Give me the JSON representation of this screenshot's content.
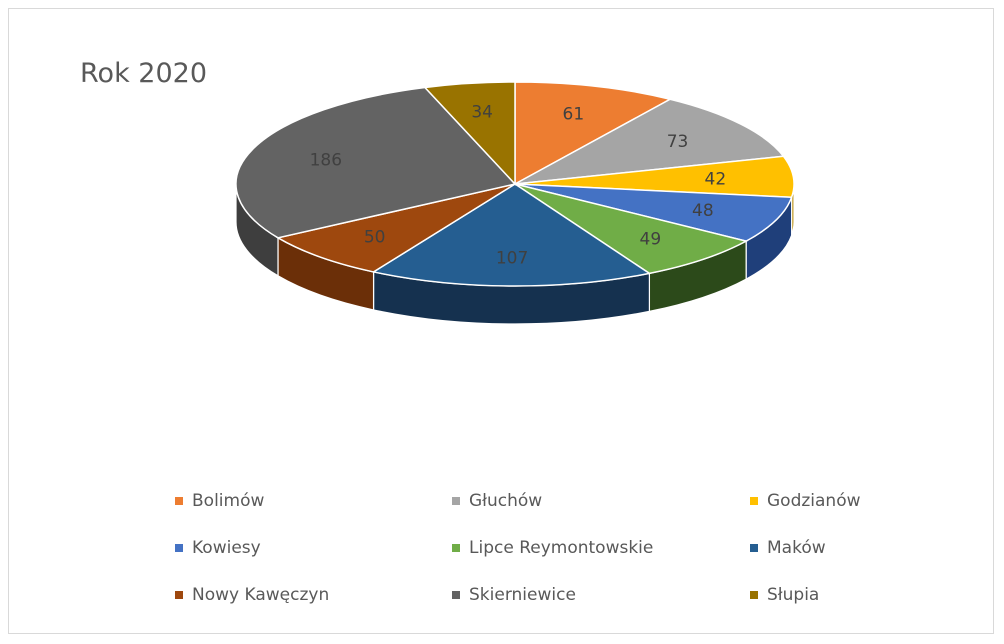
{
  "chart_data": {
    "type": "pie",
    "title": "Rok 2020",
    "slices": [
      {
        "label": "Bolimów",
        "value": 61,
        "color": "#ED7D31",
        "side": "#A9531C"
      },
      {
        "label": "Głuchów",
        "value": 73,
        "color": "#A5A5A5",
        "side": "#6E6E6E"
      },
      {
        "label": "Godzianów",
        "value": 42,
        "color": "#FFC000",
        "side": "#B58800"
      },
      {
        "label": "Kowiesy",
        "value": 48,
        "color": "#4472C4",
        "side": "#1F3F7A"
      },
      {
        "label": "Lipce Reymontowskie",
        "value": 49,
        "color": "#70AD47",
        "side": "#2C4A1A"
      },
      {
        "label": "Maków",
        "value": 107,
        "color": "#255E91",
        "side": "#15314F"
      },
      {
        "label": "Nowy Kawęczyn",
        "value": 50,
        "color": "#9E480E",
        "side": "#6B2F08"
      },
      {
        "label": "Skierniewice",
        "value": 186,
        "color": "#636363",
        "side": "#3E3E3E"
      },
      {
        "label": "Słupia",
        "value": 34,
        "color": "#997300",
        "side": "#5E4600"
      }
    ],
    "legend_position": "bottom"
  }
}
